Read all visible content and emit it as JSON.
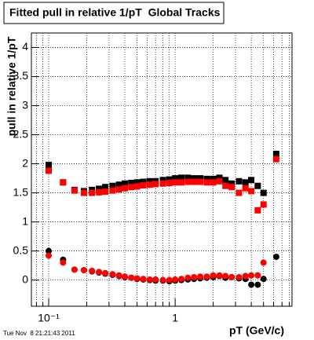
{
  "chart_data": {
    "type": "scatter",
    "title": "Fitted pull in relative 1/pT  Global Tracks",
    "ylabel": "pull in relative 1/pT",
    "xlabel": "pT (GeV/c)",
    "timestamp": "Tue Nov  8 21:21:43 2011",
    "xlog": true,
    "grid": true,
    "xlim": [
      0.073,
      8.4
    ],
    "ylim": [
      -0.45,
      4.25
    ],
    "xticks": [
      {
        "value": 0.1,
        "label": "10⁻¹"
      },
      1
    ],
    "xminor": [
      0.08,
      0.09,
      0.2,
      0.3,
      0.4,
      0.5,
      0.6,
      0.7,
      0.8,
      0.9,
      2,
      3,
      4,
      5,
      6,
      7,
      8
    ],
    "yticks": [
      0,
      0.5,
      1,
      1.5,
      2,
      2.5,
      3,
      3.5,
      4
    ],
    "x": [
      0.1,
      0.13,
      0.16,
      0.19,
      0.22,
      0.25,
      0.28,
      0.32,
      0.36,
      0.4,
      0.45,
      0.5,
      0.56,
      0.63,
      0.7,
      0.8,
      0.9,
      1.0,
      1.12,
      1.26,
      1.41,
      1.58,
      1.78,
      2.0,
      2.24,
      2.5,
      2.8,
      3.2,
      3.6,
      4.0,
      4.5,
      5.0,
      6.3
    ],
    "series": [
      {
        "color": "#000000",
        "marker": "square",
        "values": [
          1.98,
          1.68,
          1.55,
          1.53,
          1.55,
          1.57,
          1.6,
          1.62,
          1.64,
          1.66,
          1.67,
          1.68,
          1.69,
          1.7,
          1.7,
          1.72,
          1.73,
          1.75,
          1.76,
          1.76,
          1.75,
          1.75,
          1.74,
          1.74,
          1.76,
          1.72,
          1.66,
          1.7,
          1.68,
          1.72,
          1.62,
          1.5,
          2.17
        ]
      },
      {
        "color": "#ff0000",
        "marker": "square",
        "values": [
          1.88,
          1.68,
          1.54,
          1.5,
          1.5,
          1.51,
          1.52,
          1.54,
          1.56,
          1.58,
          1.6,
          1.61,
          1.63,
          1.64,
          1.65,
          1.66,
          1.67,
          1.68,
          1.68,
          1.69,
          1.69,
          1.69,
          1.68,
          1.68,
          1.7,
          1.62,
          1.6,
          1.5,
          1.58,
          1.53,
          1.2,
          1.3,
          2.08
        ]
      },
      {
        "color": "#000000",
        "marker": "circle",
        "values": [
          0.5,
          0.35,
          0.18,
          0.17,
          0.15,
          0.13,
          0.11,
          0.09,
          0.07,
          0.05,
          0.04,
          0.02,
          0.01,
          0.0,
          -0.01,
          -0.01,
          -0.02,
          -0.01,
          0.0,
          0.01,
          0.02,
          0.03,
          0.04,
          0.05,
          0.07,
          0.04,
          0.05,
          0.03,
          0.02,
          -0.08,
          -0.08,
          0.02,
          0.4
        ]
      },
      {
        "color": "#ff0000",
        "marker": "circle",
        "values": [
          0.42,
          0.3,
          0.18,
          0.17,
          0.16,
          0.14,
          0.12,
          0.1,
          0.08,
          0.06,
          0.04,
          0.03,
          0.02,
          0.01,
          0.01,
          0.0,
          0.0,
          0.01,
          0.02,
          0.04,
          0.05,
          0.06,
          0.06,
          0.08,
          0.08,
          0.07,
          0.05,
          0.05,
          0.07,
          0.08,
          0.08,
          0.3,
          null
        ]
      }
    ]
  }
}
